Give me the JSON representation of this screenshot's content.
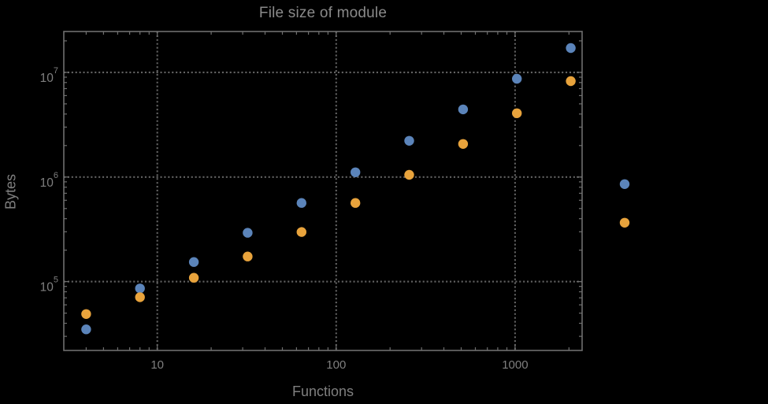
{
  "chart_data": {
    "type": "scatter",
    "title": "File size of module",
    "xlabel": "Functions",
    "ylabel": "Bytes",
    "x_scale": "log",
    "y_scale": "log",
    "xlim": [
      3.0,
      2370
    ],
    "ylim": [
      22000,
      24600000
    ],
    "grid": "dotted, at decade lines only",
    "legend_position": "none",
    "x": [
      4,
      8,
      16,
      32,
      64,
      128,
      256,
      512,
      1024,
      2048,
      4096
    ],
    "series": [
      {
        "name": "series-1-blue",
        "color": "#5B84BA",
        "values": [
          35000,
          86000,
          154000,
          293000,
          565000,
          1110000,
          2220000,
          4430000,
          8700000,
          17100000,
          855000
        ]
      },
      {
        "name": "series-2-orange",
        "color": "#E8A33C",
        "values": [
          49000,
          71000,
          109000,
          174000,
          298000,
          565000,
          1050000,
          2070000,
          4070000,
          8260000,
          366000
        ]
      }
    ],
    "x_ticks_major": [
      {
        "value": 10,
        "label": "10"
      },
      {
        "value": 100,
        "label": "100"
      },
      {
        "value": 1000,
        "label": "1000"
      }
    ],
    "x_ticks_minor": [
      4,
      5,
      6,
      7,
      8,
      9,
      20,
      30,
      40,
      50,
      60,
      70,
      80,
      90,
      200,
      300,
      400,
      500,
      600,
      700,
      800,
      900,
      2000
    ],
    "y_ticks_major": [
      {
        "value": 100000,
        "mantissa": "10",
        "exponent": "5"
      },
      {
        "value": 1000000,
        "mantissa": "10",
        "exponent": "6"
      },
      {
        "value": 10000000,
        "mantissa": "10",
        "exponent": "7"
      }
    ],
    "y_ticks_minor": [
      30000,
      40000,
      50000,
      60000,
      70000,
      80000,
      90000,
      200000,
      300000,
      400000,
      500000,
      600000,
      700000,
      800000,
      900000,
      2000000,
      3000000,
      4000000,
      5000000,
      6000000,
      7000000,
      8000000,
      9000000,
      20000000
    ]
  },
  "colors": {
    "background": "#000000",
    "frame": "#6f6f6f",
    "grid": "#626262",
    "tick": "#6f6f6f",
    "text": "#7f7f7f",
    "title_text": "#8a8a8a"
  }
}
